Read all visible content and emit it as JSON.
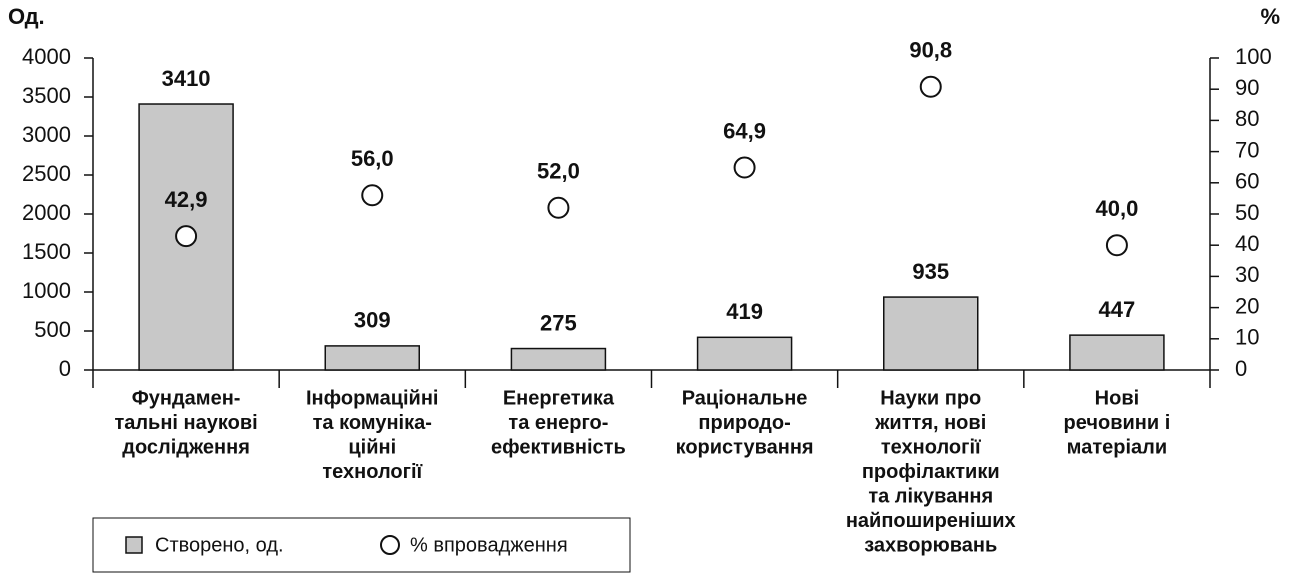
{
  "chart_data": {
    "type": "bar_dot",
    "y_label": "Од.",
    "y2_label": "%",
    "categories": [
      [
        "Фундамен-",
        "тальні наукові",
        "дослідження"
      ],
      [
        "Інформаційні",
        "та комуніка-",
        "ційні",
        "технології"
      ],
      [
        "Енергетика",
        "та енерго-",
        "ефективність"
      ],
      [
        "Раціональне",
        "природо-",
        "користування"
      ],
      [
        "Науки про",
        "життя, нові",
        "технології",
        "профілактики",
        "та лікування",
        "найпоширеніших",
        "захворювань"
      ],
      [
        "Нові",
        "речовини і",
        "матеріали"
      ]
    ],
    "series": [
      {
        "name": "Створено, од.",
        "color": "#c8c8c8",
        "values": [
          3410,
          309,
          275,
          419,
          935,
          447
        ]
      },
      {
        "name": "% впровадження",
        "color": "#ffffff",
        "axis": "y2",
        "values": [
          42.9,
          56.0,
          52.0,
          64.9,
          90.8,
          40.0
        ],
        "value_labels": [
          "42,9",
          "56,0",
          "52,0",
          "64,9",
          "90,8",
          "40,0"
        ]
      }
    ],
    "ylim": [
      0,
      4000
    ],
    "yticks": [
      0,
      500,
      1000,
      1500,
      2000,
      2500,
      3000,
      3500,
      4000
    ],
    "y2lim": [
      0,
      100
    ],
    "y2ticks": [
      0,
      10,
      20,
      30,
      40,
      50,
      60,
      70,
      80,
      90,
      100
    ],
    "legend": "bottom-left"
  }
}
